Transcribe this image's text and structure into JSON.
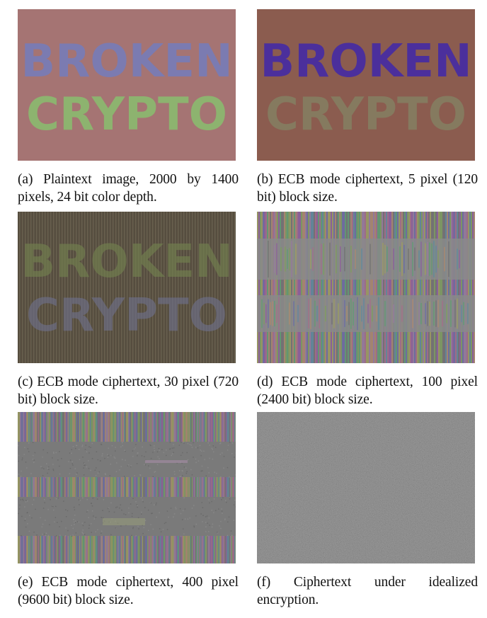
{
  "panels": [
    {
      "id": "a",
      "word1": "BROKEN",
      "word2": "CRYPTO",
      "caption": "(a) Plaintext image, 2000 by 1400 pixels, 24 bit color depth.",
      "colors": {
        "background": "#a57473",
        "word1": "#7b7bb1",
        "word2": "#8db36f"
      }
    },
    {
      "id": "b",
      "word1": "BROKEN",
      "word2": "CRYPTO",
      "caption": "(b) ECB mode ciphertext, 5 pixel (120 bit) block size.",
      "colors": {
        "background": "#8b5c4f",
        "word1": "#4b2f9c",
        "word2": "#857a5f"
      }
    },
    {
      "id": "c",
      "word1": "BROKEN",
      "word2": "CRYPTO",
      "caption": "(c) ECB mode ciphertext, 30 pixel (720 bit) block size.",
      "colors": {
        "background": "#5f5647",
        "word1": "#6f7a4d",
        "word2": "#6b6b80"
      }
    },
    {
      "id": "d",
      "caption": "(d) ECB mode ciphertext, 100 pixel (2400 bit) block size.",
      "colors": {
        "background": "#7d7380"
      }
    },
    {
      "id": "e",
      "caption": "(e) ECB mode ciphertext, 400 pixel (9600 bit) block size.",
      "colors": {
        "background": "#777777"
      }
    },
    {
      "id": "f",
      "caption": "(f) Ciphertext under idealized encryption.",
      "colors": {
        "background": "#767676"
      }
    }
  ]
}
